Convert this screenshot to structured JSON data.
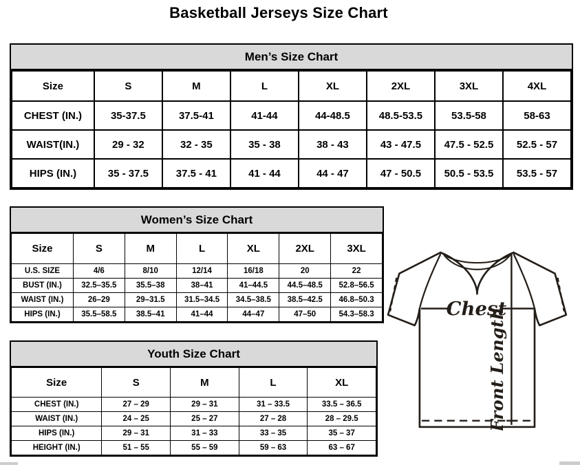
{
  "page": {
    "title": "Basketball Jerseys Size Chart"
  },
  "tables": {
    "men": {
      "title": "Men’s Size Chart",
      "columns": [
        "Size",
        "S",
        "M",
        "L",
        "XL",
        "2XL",
        "3XL",
        "4XL"
      ],
      "rows": [
        [
          "CHEST (IN.)",
          "35-37.5",
          "37.5-41",
          "41-44",
          "44-48.5",
          "48.5-53.5",
          "53.5-58",
          "58-63"
        ],
        [
          "WAIST(IN.)",
          "29 - 32",
          "32 - 35",
          "35 - 38",
          "38 - 43",
          "43 - 47.5",
          "47.5 - 52.5",
          "52.5 - 57"
        ],
        [
          "HIPS (IN.)",
          "35 - 37.5",
          "37.5 - 41",
          "41 - 44",
          "44 - 47",
          "47 - 50.5",
          "50.5 - 53.5",
          "53.5 - 57"
        ]
      ]
    },
    "women": {
      "title": "Women’s Size Chart",
      "columns": [
        "Size",
        "S",
        "M",
        "L",
        "XL",
        "2XL",
        "3XL"
      ],
      "rows": [
        [
          "U.S. SIZE",
          "4/6",
          "8/10",
          "12/14",
          "16/18",
          "20",
          "22"
        ],
        [
          "BUST (IN.)",
          "32.5–35.5",
          "35.5–38",
          "38–41",
          "41–44.5",
          "44.5–48.5",
          "52.8–56.5"
        ],
        [
          "WAIST (IN.)",
          "26–29",
          "29–31.5",
          "31.5–34.5",
          "34.5–38.5",
          "38.5–42.5",
          "46.8–50.3"
        ],
        [
          "HIPS (IN.)",
          "35.5–58.5",
          "38.5–41",
          "41–44",
          "44–47",
          "47–50",
          "54.3–58.3"
        ]
      ]
    },
    "youth": {
      "title": "Youth Size Chart",
      "columns": [
        "Size",
        "S",
        "M",
        "L",
        "XL"
      ],
      "rows": [
        [
          "CHEST (IN.)",
          "27 – 29",
          "29 – 31",
          "31 – 33.5",
          "33.5 – 36.5"
        ],
        [
          "WAIST (IN.)",
          "24 – 25",
          "25 – 27",
          "27 – 28",
          "28 – 29.5"
        ],
        [
          "HIPS (IN.)",
          "29 – 31",
          "31 – 33",
          "33 – 35",
          "35 – 37"
        ],
        [
          "HEIGHT (IN.)",
          "51 – 55",
          "55 – 59",
          "59 – 63",
          "63 – 67"
        ]
      ]
    }
  },
  "diagram": {
    "chest_label": "Chest",
    "front_length_label": "Front Length"
  },
  "colors": {
    "table_band_bg": "#d9d9d9",
    "border": "#000000",
    "diagram_stroke": "#241e19",
    "scrollbar": "#cccccc"
  }
}
